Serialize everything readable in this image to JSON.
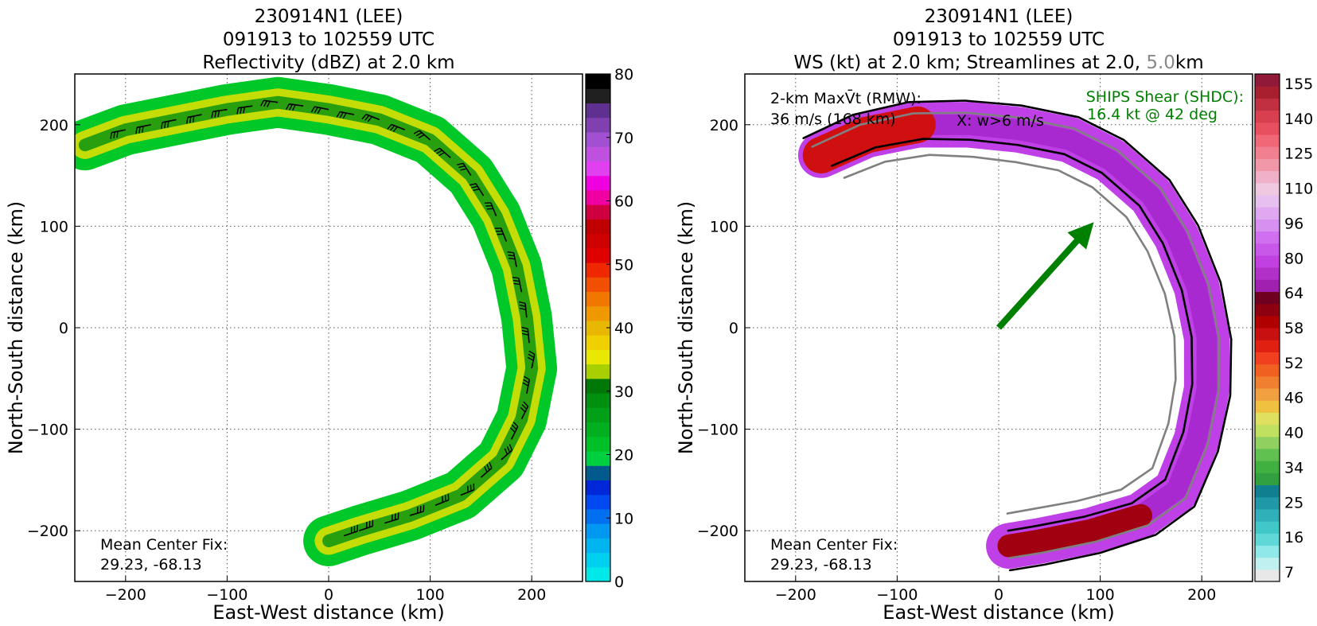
{
  "chart_data": [
    {
      "type": "heatmap",
      "title_lines": [
        "230914N1 (LEE)",
        "091913 to 102559 UTC",
        "Reflectivity (dBZ) at 2.0 km"
      ],
      "xlabel": "East-West distance (km)",
      "ylabel": "North-South distance (km)",
      "xlim": [
        -250,
        250
      ],
      "ylim": [
        -250,
        250
      ],
      "xticks": [
        -200,
        -100,
        0,
        100,
        200
      ],
      "yticks": [
        -200,
        -100,
        0,
        100,
        200
      ],
      "grid": true,
      "annotation_lines": [
        "Mean Center Fix:",
        "29.23, -68.13"
      ],
      "colorbar": {
        "min": 0,
        "max": 80,
        "ticks": [
          0,
          10,
          20,
          30,
          40,
          50,
          60,
          70,
          80
        ],
        "colors": [
          "#00e8e8",
          "#00d0f0",
          "#00b4f0",
          "#0098f0",
          "#0070f0",
          "#0048f0",
          "#0028d8",
          "#005a8c",
          "#00d040",
          "#00c028",
          "#00b020",
          "#00a018",
          "#009010",
          "#007808",
          "#a8d000",
          "#e8e800",
          "#f0d000",
          "#e8b800",
          "#f09800",
          "#f07800",
          "#f05000",
          "#f02800",
          "#e00000",
          "#d00000",
          "#c00000",
          "#d00040",
          "#f000a0",
          "#f000e0",
          "#e040f0",
          "#c050e0",
          "#a050d0",
          "#8040b0",
          "#603090",
          "#202020",
          "#000000"
        ]
      },
      "echo_band": {
        "description_points": [
          [
            -240,
            180
          ],
          [
            -200,
            195
          ],
          [
            -150,
            205
          ],
          [
            -100,
            215
          ],
          [
            -50,
            222
          ],
          [
            0,
            215
          ],
          [
            50,
            205
          ],
          [
            100,
            185
          ],
          [
            140,
            150
          ],
          [
            165,
            110
          ],
          [
            185,
            60
          ],
          [
            195,
            10
          ],
          [
            200,
            -40
          ],
          [
            190,
            -90
          ],
          [
            170,
            -130
          ],
          [
            130,
            -165
          ],
          [
            80,
            -185
          ],
          [
            30,
            -200
          ],
          [
            0,
            -210
          ]
        ],
        "width_km": 50
      }
    },
    {
      "type": "heatmap",
      "title_lines": [
        "230914N1 (LEE)",
        "091913 to 102559 UTC"
      ],
      "title_line3_parts": [
        "WS (kt) at 2.0 km; Streamlines at 2.0, ",
        "5.0",
        "km"
      ],
      "xlabel": "East-West distance (km)",
      "ylabel": "North-South distance (km)",
      "xlim": [
        -250,
        250
      ],
      "ylim": [
        -250,
        250
      ],
      "xticks": [
        -200,
        -100,
        0,
        100,
        200
      ],
      "yticks": [
        -200,
        -100,
        0,
        100,
        200
      ],
      "grid": true,
      "rmw_label": "2-km MaxV̄t (RMW):",
      "rmw_value": "36 m/s (168 km)",
      "w_marker_label": "X: w>6 m/s",
      "shear_label": "SHIPS Shear (SHDC):",
      "shear_value": "16.4 kt @ 42 deg",
      "shear_direction_deg": 42,
      "shear_color": "#008000",
      "annotation_lines": [
        "Mean Center Fix:",
        "29.23, -68.13"
      ],
      "colorbar": {
        "tick_labels": [
          "7",
          "16",
          "25",
          "34",
          "40",
          "46",
          "52",
          "58",
          "64",
          "80",
          "96",
          "110",
          "125",
          "140",
          "155"
        ],
        "colors": [
          "#e8e8e8",
          "#c0f0f0",
          "#90e8e8",
          "#60d8d8",
          "#40c8c8",
          "#30b0b8",
          "#2098a8",
          "#108090",
          "#30a040",
          "#40b040",
          "#60c050",
          "#90d060",
          "#c0e060",
          "#e0e060",
          "#f0c040",
          "#f0a040",
          "#f08030",
          "#f06020",
          "#f04020",
          "#e02010",
          "#c81010",
          "#b00000",
          "#8c0010",
          "#700020",
          "#a020b0",
          "#b030c8",
          "#c040e0",
          "#c858e8",
          "#d070f0",
          "#d890f0",
          "#e0a8f0",
          "#e8c0f0",
          "#f0c8e0",
          "#f0b0c8",
          "#f098a8",
          "#f08090",
          "#f06878",
          "#e85060",
          "#d84050",
          "#c03040",
          "#a82030",
          "#901838"
        ]
      },
      "wind_band": {
        "description_points": [
          [
            -175,
            170
          ],
          [
            -130,
            190
          ],
          [
            -80,
            200
          ],
          [
            -30,
            200
          ],
          [
            20,
            195
          ],
          [
            70,
            185
          ],
          [
            110,
            165
          ],
          [
            150,
            130
          ],
          [
            175,
            90
          ],
          [
            195,
            40
          ],
          [
            205,
            -10
          ],
          [
            205,
            -60
          ],
          [
            195,
            -110
          ],
          [
            175,
            -160
          ],
          [
            140,
            -185
          ],
          [
            90,
            -200
          ],
          [
            40,
            -210
          ],
          [
            10,
            -215
          ]
        ],
        "width_km": 45
      }
    }
  ]
}
